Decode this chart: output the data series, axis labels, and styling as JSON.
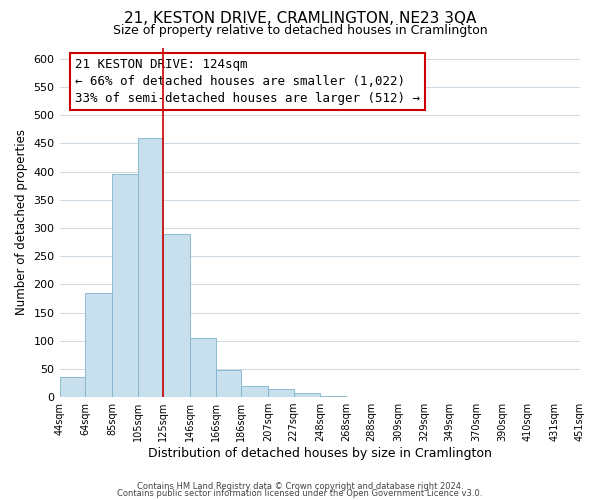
{
  "title": "21, KESTON DRIVE, CRAMLINGTON, NE23 3QA",
  "subtitle": "Size of property relative to detached houses in Cramlington",
  "xlabel": "Distribution of detached houses by size in Cramlington",
  "ylabel": "Number of detached properties",
  "bar_left_edges": [
    44,
    64,
    85,
    105,
    125,
    146,
    166,
    186,
    207,
    227,
    248,
    268,
    288,
    309,
    329,
    349,
    370,
    390,
    410,
    431
  ],
  "bar_widths": [
    20,
    21,
    20,
    20,
    21,
    20,
    20,
    21,
    20,
    21,
    20,
    20,
    21,
    20,
    20,
    21,
    20,
    20,
    21,
    20
  ],
  "bar_heights": [
    35,
    185,
    395,
    460,
    290,
    105,
    48,
    20,
    15,
    8,
    2,
    1,
    1,
    1,
    0,
    0,
    0,
    0,
    0,
    1
  ],
  "bar_color": "#c8e0ed",
  "bar_edge_color": "#7fb3cc",
  "tick_labels": [
    "44sqm",
    "64sqm",
    "85sqm",
    "105sqm",
    "125sqm",
    "146sqm",
    "166sqm",
    "186sqm",
    "207sqm",
    "227sqm",
    "248sqm",
    "268sqm",
    "288sqm",
    "309sqm",
    "329sqm",
    "349sqm",
    "370sqm",
    "390sqm",
    "410sqm",
    "431sqm",
    "451sqm"
  ],
  "tick_positions": [
    44,
    64,
    85,
    105,
    125,
    146,
    166,
    186,
    207,
    227,
    248,
    268,
    288,
    309,
    329,
    349,
    370,
    390,
    410,
    431,
    451
  ],
  "vline_x": 125,
  "vline_color": "#cc0000",
  "annotation_title": "21 KESTON DRIVE: 124sqm",
  "annotation_line1": "← 66% of detached houses are smaller (1,022)",
  "annotation_line2": "33% of semi-detached houses are larger (512) →",
  "annotation_fontsize": 9,
  "annotation_box_edgecolor": "#cc0000",
  "ylim": [
    0,
    620
  ],
  "yticks": [
    0,
    50,
    100,
    150,
    200,
    250,
    300,
    350,
    400,
    450,
    500,
    550,
    600
  ],
  "footer1": "Contains HM Land Registry data © Crown copyright and database right 2024.",
  "footer2": "Contains public sector information licensed under the Open Government Licence v3.0.",
  "background_color": "#ffffff",
  "grid_color": "#ccd9e3",
  "title_fontsize": 11,
  "subtitle_fontsize": 9,
  "xlabel_fontsize": 9,
  "ylabel_fontsize": 8.5,
  "ytick_fontsize": 8,
  "xtick_fontsize": 7
}
